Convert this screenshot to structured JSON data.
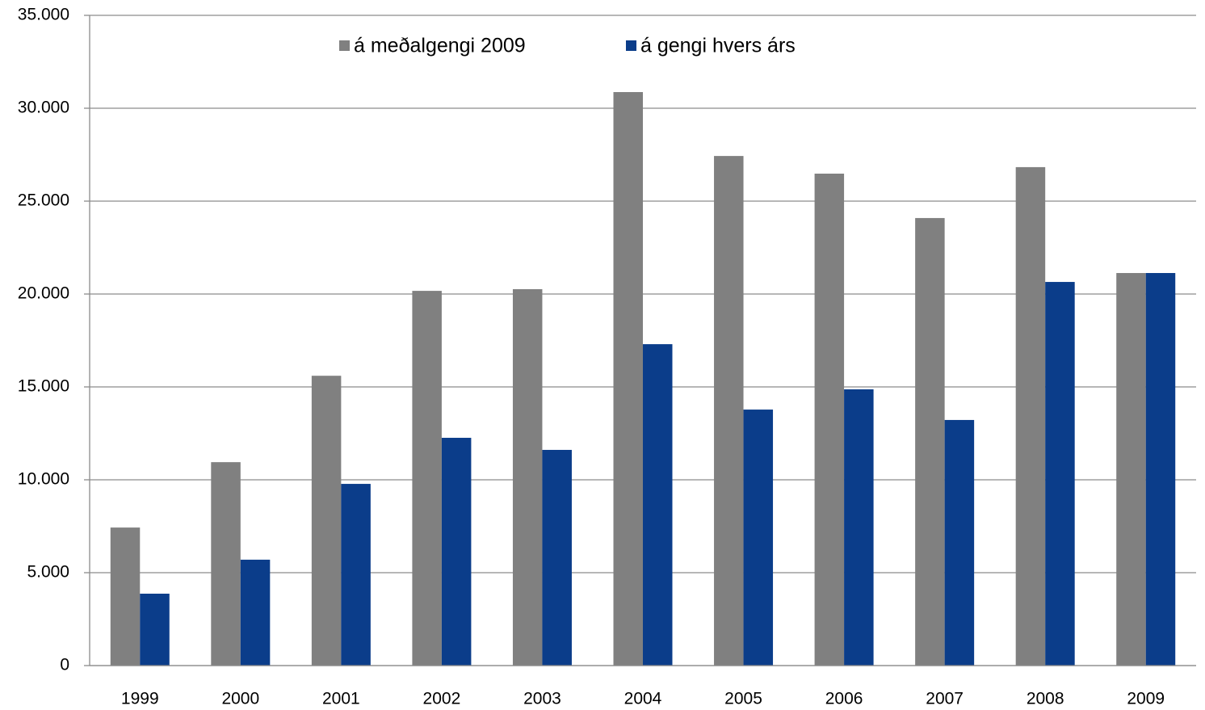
{
  "chart_data": {
    "type": "bar",
    "categories": [
      "1999",
      "2000",
      "2001",
      "2002",
      "2003",
      "2004",
      "2005",
      "2006",
      "2007",
      "2008",
      "2009"
    ],
    "series": [
      {
        "name": "á meðalgengi 2009",
        "color": "#808080",
        "values": [
          7430,
          10950,
          15600,
          20170,
          20260,
          30870,
          27430,
          26480,
          24090,
          26830,
          21130
        ]
      },
      {
        "name": "á gengi hvers árs",
        "color": "#0b3d8a",
        "values": [
          3870,
          5700,
          9780,
          12260,
          11610,
          17300,
          13780,
          14870,
          13220,
          20650,
          21130
        ]
      }
    ],
    "ylim": [
      0,
      35000
    ],
    "yticks": [
      0,
      {
        "value": 5000,
        "label": "5.000"
      },
      {
        "value": 10000,
        "label": "10.000"
      },
      {
        "value": 15000,
        "label": "15.000"
      },
      {
        "value": 20000,
        "label": "20.000"
      },
      {
        "value": 25000,
        "label": "25.000"
      },
      {
        "value": 30000,
        "label": "30.000"
      },
      {
        "value": 35000,
        "label": "35.000"
      }
    ],
    "grid": true,
    "legend": "top"
  }
}
